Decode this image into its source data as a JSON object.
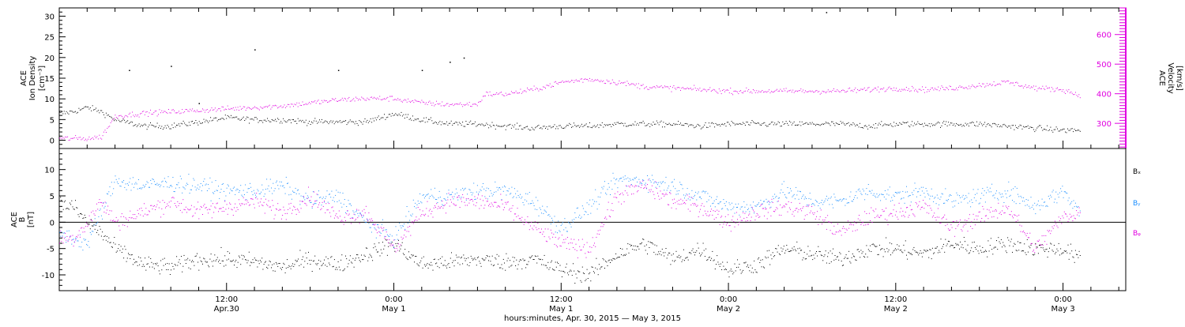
{
  "figure": {
    "xlabel": "hours:minutes, Apr. 30, 2015 — May  3, 2015",
    "time_ticks": [
      {
        "hours": 12,
        "top": "12:00",
        "bottom": "Apr.30"
      },
      {
        "hours": 24,
        "top": "0:00",
        "bottom": "May 1"
      },
      {
        "hours": 36,
        "top": "12:00",
        "bottom": "May 1"
      },
      {
        "hours": 48,
        "top": "0:00",
        "bottom": "May 2"
      },
      {
        "hours": 60,
        "top": "12:00",
        "bottom": "May 2"
      },
      {
        "hours": 72,
        "top": "0:00",
        "bottom": "May 3"
      }
    ],
    "colors": {
      "black": "#000000",
      "magenta": "#e000e0",
      "blue": "#1e90ff"
    }
  },
  "chart_data": [
    {
      "type": "scatter",
      "panel": "top",
      "ylabel_left": [
        "ACE",
        "Ion Density",
        "[cm⁻³]"
      ],
      "ylabel_right": [
        "ACE",
        "Velocity",
        "[km/s]"
      ],
      "xlim_hours": [
        0,
        76.5
      ],
      "ylim_left": [
        -2,
        32
      ],
      "ylim_right": [
        215,
        690
      ],
      "yticks_left": [
        0,
        5,
        10,
        15,
        20,
        25,
        30
      ],
      "yticks_right": [
        300,
        400,
        500,
        600
      ],
      "series": [
        {
          "axis": "left",
          "color": "#000000",
          "t": [
            0,
            1,
            2,
            3,
            4,
            6,
            8,
            10,
            12,
            14,
            16,
            18,
            20,
            22,
            24,
            26,
            28,
            30,
            32,
            34,
            36,
            38,
            40,
            42,
            44,
            46,
            48,
            50,
            52,
            54,
            56,
            58,
            60,
            62,
            64,
            66,
            68,
            70,
            72,
            73.2
          ],
          "values": [
            6.5,
            7,
            8,
            7,
            5,
            3.5,
            3.5,
            4.5,
            5.5,
            5,
            5,
            4.5,
            4.5,
            4.5,
            6.5,
            5,
            4,
            4,
            3.5,
            3,
            3.5,
            3.5,
            4,
            4,
            4,
            3.5,
            4,
            4,
            4,
            4,
            4,
            3.5,
            4,
            4,
            4,
            4,
            3.5,
            3,
            2.5,
            2.5
          ]
        },
        {
          "axis": "right",
          "color": "#e000e0",
          "t": [
            0,
            2,
            3,
            3.5,
            4,
            6,
            8,
            10,
            12,
            14,
            16,
            18,
            20,
            22,
            24,
            26,
            28,
            30,
            30.5,
            32,
            34,
            36,
            38,
            40,
            42,
            44,
            46,
            48,
            50,
            52,
            54,
            56,
            58,
            60,
            62,
            64,
            66,
            68,
            70,
            72,
            73.2
          ],
          "values": [
            250,
            250,
            255,
            290,
            325,
            335,
            340,
            345,
            350,
            355,
            360,
            370,
            380,
            385,
            385,
            370,
            365,
            365,
            400,
            400,
            415,
            440,
            450,
            440,
            425,
            420,
            415,
            410,
            410,
            410,
            410,
            410,
            415,
            420,
            415,
            420,
            430,
            440,
            420,
            415,
            395
          ]
        }
      ],
      "outliers": {
        "axis": "left",
        "t": [
          5,
          8,
          10,
          14,
          20,
          26,
          28,
          29,
          55
        ],
        "values": [
          17,
          18,
          9,
          22,
          17,
          17,
          19,
          20,
          31
        ]
      }
    },
    {
      "type": "scatter",
      "panel": "bottom",
      "ylabel_left": [
        "ACE",
        "B",
        "[nT]"
      ],
      "xlim_hours": [
        0,
        76.5
      ],
      "ylim": [
        -13,
        14
      ],
      "yticks": [
        -10,
        -5,
        0,
        5,
        10
      ],
      "zero_line": true,
      "series": [
        {
          "name": "Bₓ",
          "color": "#000000",
          "t": [
            0,
            1,
            2,
            3,
            4,
            6,
            8,
            10,
            12,
            14,
            16,
            18,
            20,
            22,
            24,
            26,
            28,
            30,
            32,
            34,
            36,
            38,
            40,
            42,
            44,
            46,
            48,
            50,
            52,
            54,
            56,
            58,
            60,
            62,
            64,
            66,
            68,
            70,
            72,
            73.2
          ],
          "values": [
            3.5,
            3,
            0,
            -2,
            -5,
            -8,
            -8.5,
            -7,
            -7,
            -7.5,
            -8.5,
            -7,
            -8,
            -6,
            -4,
            -8,
            -7.5,
            -7,
            -7.5,
            -7,
            -9,
            -10,
            -6,
            -4,
            -7,
            -5,
            -9,
            -8,
            -5,
            -6,
            -7,
            -5,
            -5,
            -6,
            -4,
            -5,
            -4,
            -5,
            -5,
            -7
          ]
        },
        {
          "name": "Bᵧ",
          "color": "#1e90ff",
          "t": [
            0,
            1,
            2,
            3,
            4,
            6,
            8,
            10,
            12,
            14,
            16,
            18,
            20,
            22,
            24,
            26,
            28,
            30,
            32,
            34,
            36,
            38,
            40,
            42,
            44,
            46,
            48,
            50,
            52,
            54,
            56,
            58,
            60,
            62,
            64,
            66,
            68,
            70,
            72,
            73.2
          ],
          "values": [
            -2,
            -3,
            -4,
            2,
            8,
            7,
            7.5,
            7,
            6,
            6,
            7,
            4,
            5,
            0,
            -3,
            5,
            5,
            6,
            6,
            4,
            -1,
            3,
            8,
            8,
            7,
            5,
            3,
            3,
            6,
            4,
            4,
            6,
            5,
            6,
            4,
            5,
            6,
            3,
            6,
            2
          ]
        },
        {
          "name": "Bᵩ",
          "color": "#e000e0",
          "t": [
            0,
            1,
            2,
            3,
            4,
            6,
            8,
            10,
            12,
            14,
            16,
            18,
            20,
            22,
            24,
            26,
            28,
            30,
            32,
            34,
            36,
            38,
            40,
            42,
            44,
            46,
            48,
            50,
            52,
            54,
            56,
            58,
            60,
            62,
            64,
            66,
            68,
            70,
            72,
            73.2
          ],
          "values": [
            -3,
            -3,
            0,
            4,
            0,
            2,
            4,
            2,
            3,
            4,
            2,
            5,
            1,
            2,
            -5,
            2,
            4,
            4,
            3,
            -1,
            -4,
            -5,
            5,
            7,
            4,
            3,
            0,
            2,
            3,
            2,
            -2,
            1,
            2,
            3,
            -1,
            1,
            3,
            -5,
            1,
            2
          ]
        }
      ]
    }
  ]
}
